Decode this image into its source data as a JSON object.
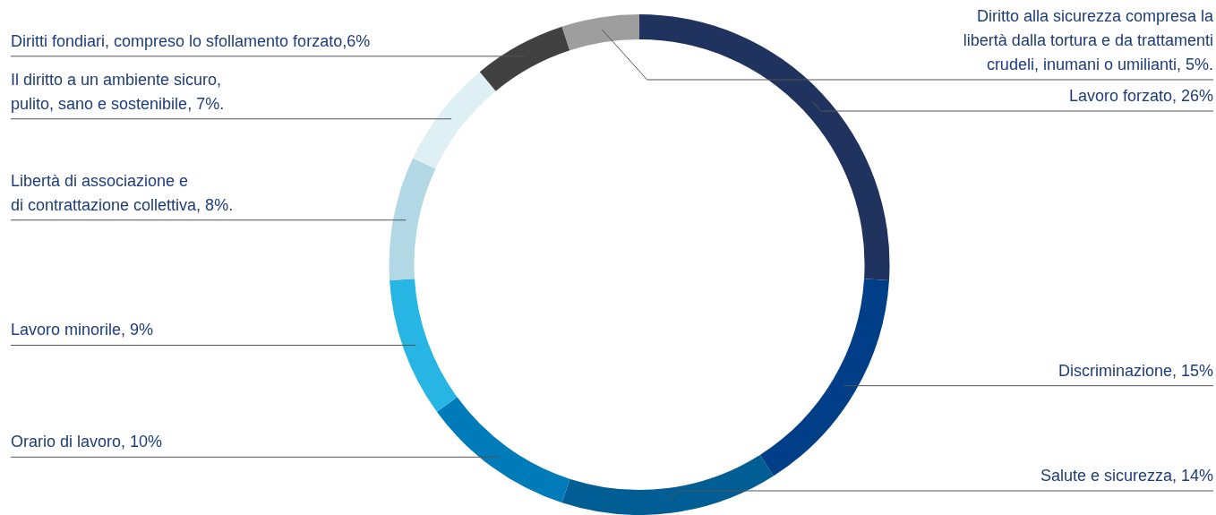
{
  "chart_data": {
    "type": "donut",
    "categories": [
      "Lavoro forzato, 26%",
      "Discriminazione, 15%",
      "Salute e sicurezza, 14%",
      "Orario di lavoro, 10%",
      "Lavoro minorile, 9%",
      "Libertà di associazione e\ndi contrattazione collettiva, 8%.",
      "Il diritto a un ambiente sicuro,\npulito, sano e sostenibile, 7%.",
      "Diritti fondiari, compreso lo sfollamento forzato,6%",
      "Diritto alla sicurezza compresa la\nlibertà dalla tortura e da trattamenti\ncrudeli, inumani o umilianti, 5%."
    ],
    "values": [
      26,
      15,
      14,
      10,
      9,
      8,
      7,
      6,
      5
    ],
    "colors": [
      "#20335e",
      "#003f88",
      "#005e94",
      "#007bb9",
      "#27b5e3",
      "#b2d8e6",
      "#dff0f5",
      "#414141",
      "#9e9e9e"
    ],
    "legend": false
  }
}
